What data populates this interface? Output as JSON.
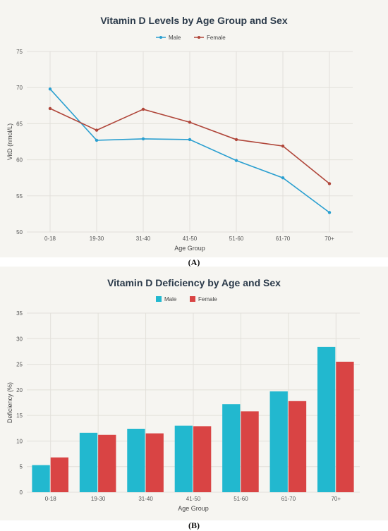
{
  "captions": {
    "a": "(A)",
    "b": "(B)"
  },
  "chart_data": [
    {
      "type": "line",
      "title": "Vitamin D Levels by Age Group and Sex",
      "xlabel": "Age Group",
      "ylabel": "VitD (nmol/L)",
      "categories": [
        "0-18",
        "19-30",
        "31-40",
        "41-50",
        "51-60",
        "61-70",
        "70+"
      ],
      "ylim": [
        50,
        75
      ],
      "yticks": [
        50,
        55,
        60,
        65,
        70,
        75
      ],
      "series": [
        {
          "name": "Male",
          "color": "#2a9fd0",
          "values": [
            69.8,
            62.7,
            62.9,
            62.8,
            59.9,
            57.5,
            52.7
          ]
        },
        {
          "name": "Female",
          "color": "#b0463a",
          "values": [
            67.1,
            64.1,
            67.0,
            65.2,
            62.8,
            61.9,
            56.7
          ]
        }
      ],
      "legend": "top-center",
      "grid": true
    },
    {
      "type": "bar",
      "title": "Vitamin D Deficiency by Age and Sex",
      "xlabel": "Age Group",
      "ylabel": "Deficiency (%)",
      "categories": [
        "0-18",
        "19-30",
        "31-40",
        "41-50",
        "51-60",
        "61-70",
        "70+"
      ],
      "ylim": [
        0,
        35
      ],
      "yticks": [
        0,
        5,
        10,
        15,
        20,
        25,
        30,
        35
      ],
      "series": [
        {
          "name": "Male",
          "color": "#22b8cf",
          "values": [
            5.3,
            11.6,
            12.4,
            13.0,
            17.2,
            19.7,
            28.4
          ]
        },
        {
          "name": "Female",
          "color": "#d94444",
          "values": [
            6.8,
            11.2,
            11.5,
            12.9,
            15.8,
            17.8,
            25.5
          ]
        }
      ],
      "legend": "top-center",
      "grid": true
    }
  ]
}
